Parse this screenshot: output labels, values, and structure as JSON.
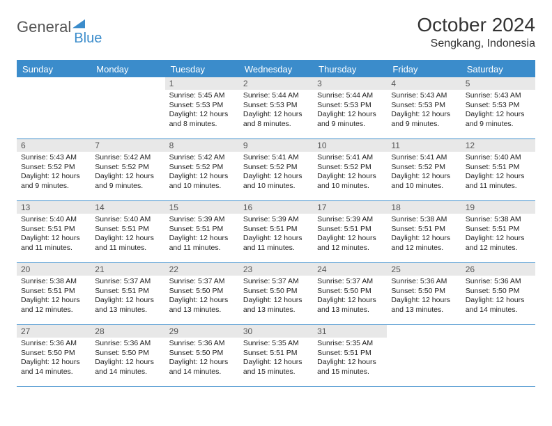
{
  "brand": {
    "name1": "General",
    "name2": "Blue"
  },
  "title": "October 2024",
  "location": "Sengkang, Indonesia",
  "colors": {
    "accent": "#3b8ccb",
    "dayNumBg": "#e8e8e8",
    "text": "#333333",
    "bg": "#ffffff"
  },
  "daysOfWeek": [
    "Sunday",
    "Monday",
    "Tuesday",
    "Wednesday",
    "Thursday",
    "Friday",
    "Saturday"
  ],
  "weeks": [
    [
      {
        "empty": true
      },
      {
        "empty": true
      },
      {
        "n": "1",
        "sunrise": "5:45 AM",
        "sunset": "5:53 PM",
        "daylight": "12 hours and 8 minutes."
      },
      {
        "n": "2",
        "sunrise": "5:44 AM",
        "sunset": "5:53 PM",
        "daylight": "12 hours and 8 minutes."
      },
      {
        "n": "3",
        "sunrise": "5:44 AM",
        "sunset": "5:53 PM",
        "daylight": "12 hours and 9 minutes."
      },
      {
        "n": "4",
        "sunrise": "5:43 AM",
        "sunset": "5:53 PM",
        "daylight": "12 hours and 9 minutes."
      },
      {
        "n": "5",
        "sunrise": "5:43 AM",
        "sunset": "5:53 PM",
        "daylight": "12 hours and 9 minutes."
      }
    ],
    [
      {
        "n": "6",
        "sunrise": "5:43 AM",
        "sunset": "5:52 PM",
        "daylight": "12 hours and 9 minutes."
      },
      {
        "n": "7",
        "sunrise": "5:42 AM",
        "sunset": "5:52 PM",
        "daylight": "12 hours and 9 minutes."
      },
      {
        "n": "8",
        "sunrise": "5:42 AM",
        "sunset": "5:52 PM",
        "daylight": "12 hours and 10 minutes."
      },
      {
        "n": "9",
        "sunrise": "5:41 AM",
        "sunset": "5:52 PM",
        "daylight": "12 hours and 10 minutes."
      },
      {
        "n": "10",
        "sunrise": "5:41 AM",
        "sunset": "5:52 PM",
        "daylight": "12 hours and 10 minutes."
      },
      {
        "n": "11",
        "sunrise": "5:41 AM",
        "sunset": "5:52 PM",
        "daylight": "12 hours and 10 minutes."
      },
      {
        "n": "12",
        "sunrise": "5:40 AM",
        "sunset": "5:51 PM",
        "daylight": "12 hours and 11 minutes."
      }
    ],
    [
      {
        "n": "13",
        "sunrise": "5:40 AM",
        "sunset": "5:51 PM",
        "daylight": "12 hours and 11 minutes."
      },
      {
        "n": "14",
        "sunrise": "5:40 AM",
        "sunset": "5:51 PM",
        "daylight": "12 hours and 11 minutes."
      },
      {
        "n": "15",
        "sunrise": "5:39 AM",
        "sunset": "5:51 PM",
        "daylight": "12 hours and 11 minutes."
      },
      {
        "n": "16",
        "sunrise": "5:39 AM",
        "sunset": "5:51 PM",
        "daylight": "12 hours and 11 minutes."
      },
      {
        "n": "17",
        "sunrise": "5:39 AM",
        "sunset": "5:51 PM",
        "daylight": "12 hours and 12 minutes."
      },
      {
        "n": "18",
        "sunrise": "5:38 AM",
        "sunset": "5:51 PM",
        "daylight": "12 hours and 12 minutes."
      },
      {
        "n": "19",
        "sunrise": "5:38 AM",
        "sunset": "5:51 PM",
        "daylight": "12 hours and 12 minutes."
      }
    ],
    [
      {
        "n": "20",
        "sunrise": "5:38 AM",
        "sunset": "5:51 PM",
        "daylight": "12 hours and 12 minutes."
      },
      {
        "n": "21",
        "sunrise": "5:37 AM",
        "sunset": "5:51 PM",
        "daylight": "12 hours and 13 minutes."
      },
      {
        "n": "22",
        "sunrise": "5:37 AM",
        "sunset": "5:50 PM",
        "daylight": "12 hours and 13 minutes."
      },
      {
        "n": "23",
        "sunrise": "5:37 AM",
        "sunset": "5:50 PM",
        "daylight": "12 hours and 13 minutes."
      },
      {
        "n": "24",
        "sunrise": "5:37 AM",
        "sunset": "5:50 PM",
        "daylight": "12 hours and 13 minutes."
      },
      {
        "n": "25",
        "sunrise": "5:36 AM",
        "sunset": "5:50 PM",
        "daylight": "12 hours and 13 minutes."
      },
      {
        "n": "26",
        "sunrise": "5:36 AM",
        "sunset": "5:50 PM",
        "daylight": "12 hours and 14 minutes."
      }
    ],
    [
      {
        "n": "27",
        "sunrise": "5:36 AM",
        "sunset": "5:50 PM",
        "daylight": "12 hours and 14 minutes."
      },
      {
        "n": "28",
        "sunrise": "5:36 AM",
        "sunset": "5:50 PM",
        "daylight": "12 hours and 14 minutes."
      },
      {
        "n": "29",
        "sunrise": "5:36 AM",
        "sunset": "5:50 PM",
        "daylight": "12 hours and 14 minutes."
      },
      {
        "n": "30",
        "sunrise": "5:35 AM",
        "sunset": "5:51 PM",
        "daylight": "12 hours and 15 minutes."
      },
      {
        "n": "31",
        "sunrise": "5:35 AM",
        "sunset": "5:51 PM",
        "daylight": "12 hours and 15 minutes."
      },
      {
        "empty": true
      },
      {
        "empty": true
      }
    ]
  ],
  "labels": {
    "sunrise": "Sunrise:",
    "sunset": "Sunset:",
    "daylight": "Daylight:"
  }
}
